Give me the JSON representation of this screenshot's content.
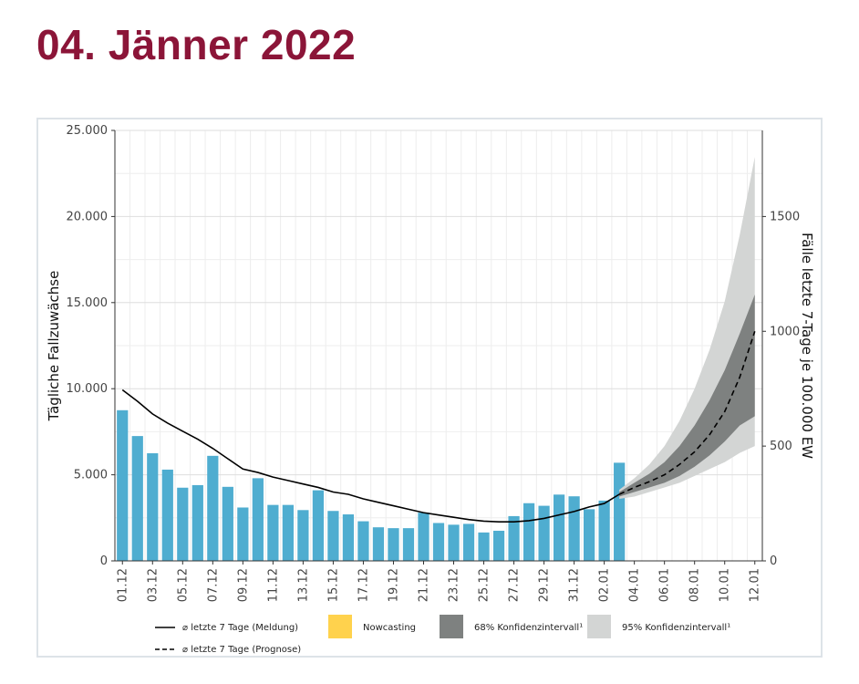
{
  "page": {
    "title": "04. Jänner 2022"
  },
  "colors": {
    "title": "#8b1538",
    "bars": "#4fadd0",
    "line": "#000000",
    "nowcasting": "#ffd24d",
    "ci68": "#7e8180",
    "ci95": "#d3d5d4"
  },
  "chart_data": {
    "type": "bar",
    "xlabel": "",
    "ylabel": "Tägliche Fallzuwächse",
    "y2label": "Fälle letzte 7-Tage je 100.000 EW",
    "ylim": [
      0,
      25000
    ],
    "y2lim": [
      0,
      1875
    ],
    "yticks": [
      "0",
      "5.000",
      "10.000",
      "15.000",
      "20.000",
      "25.000"
    ],
    "y2ticks": [
      "0",
      "500",
      "1000",
      "1500"
    ],
    "xticklabels": [
      "01.12",
      "03.12",
      "05.12",
      "07.12",
      "09.12",
      "11.12",
      "13.12",
      "15.12",
      "17.12",
      "19.12",
      "21.12",
      "23.12",
      "25.12",
      "27.12",
      "29.12",
      "31.12",
      "02.01",
      "04.01",
      "06.01",
      "08.01",
      "10.01",
      "12.01"
    ],
    "categories": [
      "01.12",
      "02.12",
      "03.12",
      "04.12",
      "05.12",
      "06.12",
      "07.12",
      "08.12",
      "09.12",
      "10.12",
      "11.12",
      "12.12",
      "13.12",
      "14.12",
      "15.12",
      "16.12",
      "17.12",
      "18.12",
      "19.12",
      "20.12",
      "21.12",
      "22.12",
      "23.12",
      "24.12",
      "25.12",
      "26.12",
      "27.12",
      "28.12",
      "29.12",
      "30.12",
      "31.12",
      "01.01",
      "02.01",
      "03.01"
    ],
    "values": [
      8750,
      7250,
      6250,
      5300,
      4250,
      4400,
      6100,
      4300,
      3100,
      4800,
      3250,
      3250,
      2950,
      4100,
      2900,
      2700,
      2300,
      1950,
      1900,
      1900,
      2800,
      2200,
      2100,
      2150,
      1650,
      1750,
      2600,
      3350,
      3200,
      3850,
      3750,
      3000,
      3500,
      5700
    ],
    "series": [
      {
        "name": "⌀ letzte 7 Tage (Meldung)",
        "axis": "right",
        "values": [
          745,
          695,
          640,
          600,
          565,
          530,
          490,
          445,
          400,
          385,
          365,
          350,
          335,
          320,
          300,
          290,
          270,
          255,
          240,
          225,
          210,
          200,
          190,
          180,
          173,
          170,
          170,
          175,
          185,
          200,
          215,
          235,
          250,
          290
        ]
      },
      {
        "name": "⌀ letzte 7 Tage (Prognose)",
        "axis": "right",
        "x": [
          "03.01",
          "04.01",
          "05.01",
          "06.01",
          "07.01",
          "08.01",
          "09.01",
          "10.01",
          "11.01",
          "12.01"
        ],
        "values": [
          290,
          320,
          345,
          375,
          420,
          475,
          550,
          650,
          800,
          1000
        ],
        "ci68_low": [
          280,
          300,
          320,
          340,
          370,
          410,
          460,
          520,
          590,
          630
        ],
        "ci68_high": [
          300,
          340,
          380,
          430,
          500,
          590,
          700,
          830,
          990,
          1160
        ],
        "ci95_low": [
          270,
          280,
          300,
          320,
          340,
          370,
          400,
          430,
          470,
          500
        ],
        "ci95_high": [
          310,
          360,
          420,
          500,
          610,
          750,
          920,
          1130,
          1420,
          1760
        ]
      }
    ],
    "legend": {
      "placement": "bottom",
      "items": [
        {
          "label": "⌀ letzte 7 Tage (Meldung)",
          "kind": "solid-line"
        },
        {
          "label": "Nowcasting",
          "kind": "swatch-yellow"
        },
        {
          "label": "68% Konfidenzintervall¹",
          "kind": "swatch-dark"
        },
        {
          "label": "95% Konfidenzintervall¹",
          "kind": "swatch-light"
        },
        {
          "label": "⌀ letzte 7 Tage (Prognose)",
          "kind": "dashed-line"
        }
      ]
    }
  }
}
